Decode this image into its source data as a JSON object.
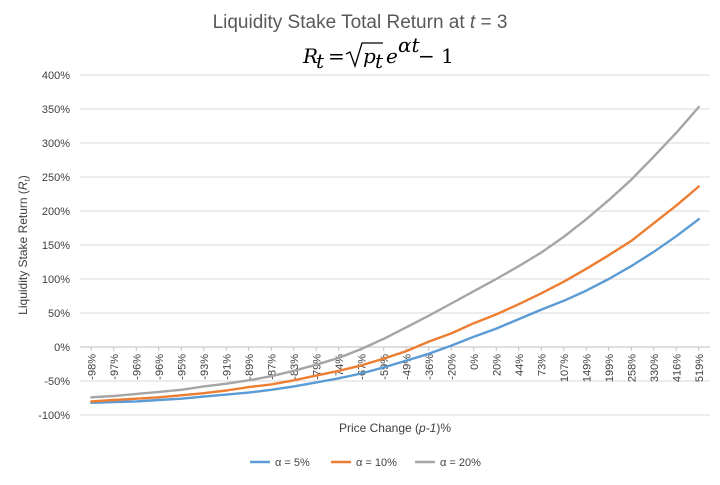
{
  "chart_data": {
    "type": "line",
    "title": "Liquidity Stake Total Return at t = 3",
    "title_parts": {
      "text": "Liquidity Stake Total Return at ",
      "var": "t",
      "rest": " = 3"
    },
    "formula": "R_t = sqrt(p_t) e^(αt) − 1",
    "xlabel": "Price Change (p-1)%",
    "xlabel_parts": {
      "pre": "Price Change (",
      "var": "p-1",
      "post": ")%"
    },
    "ylabel": "Liquidity Stake Return (Rt)",
    "ylabel_parts": {
      "pre": "Liquidity Stake Return (",
      "var": "R",
      "sub": "t",
      "post": ")"
    },
    "ylim": [
      -1.0,
      4.0
    ],
    "yticks": [
      -1.0,
      -0.5,
      0.0,
      0.5,
      1.0,
      1.5,
      2.0,
      2.5,
      3.0,
      3.5,
      4.0
    ],
    "ytick_labels": [
      "-100%",
      "-50%",
      "0%",
      "50%",
      "100%",
      "150%",
      "200%",
      "250%",
      "300%",
      "350%",
      "400%"
    ],
    "categories": [
      "-98%",
      "-97%",
      "-96%",
      "-96%",
      "-95%",
      "-93%",
      "-91%",
      "-89%",
      "-87%",
      "-83%",
      "-79%",
      "-74%",
      "-67%",
      "-59%",
      "-49%",
      "-36%",
      "-20%",
      "0%",
      "20%",
      "44%",
      "73%",
      "107%",
      "149%",
      "199%",
      "258%",
      "330%",
      "416%",
      "519%"
    ],
    "grid": true,
    "legend_position": "bottom",
    "series": [
      {
        "name": "α = 5%",
        "color": "#5B9BD5",
        "values": [
          -0.82,
          -0.81,
          -0.8,
          -0.78,
          -0.76,
          -0.73,
          -0.7,
          -0.67,
          -0.63,
          -0.58,
          -0.52,
          -0.46,
          -0.39,
          -0.3,
          -0.2,
          -0.1,
          0.02,
          0.15,
          0.27,
          0.41,
          0.55,
          0.68,
          0.83,
          1.0,
          1.19,
          1.4,
          1.63,
          1.88
        ]
      },
      {
        "name": "α = 10%",
        "color": "#ED7D31",
        "values": [
          -0.8,
          -0.78,
          -0.76,
          -0.74,
          -0.71,
          -0.68,
          -0.64,
          -0.59,
          -0.55,
          -0.49,
          -0.42,
          -0.35,
          -0.27,
          -0.17,
          -0.06,
          0.08,
          0.2,
          0.35,
          0.48,
          0.63,
          0.79,
          0.96,
          1.15,
          1.35,
          1.56,
          1.82,
          2.08,
          2.36
        ]
      },
      {
        "name": "α = 20%",
        "color": "#A5A5A5",
        "values": [
          -0.74,
          -0.72,
          -0.69,
          -0.66,
          -0.63,
          -0.58,
          -0.54,
          -0.49,
          -0.43,
          -0.35,
          -0.26,
          -0.16,
          -0.03,
          0.12,
          0.29,
          0.46,
          0.64,
          0.82,
          1.0,
          1.19,
          1.39,
          1.62,
          1.88,
          2.16,
          2.46,
          2.8,
          3.15,
          3.53
        ]
      }
    ]
  }
}
